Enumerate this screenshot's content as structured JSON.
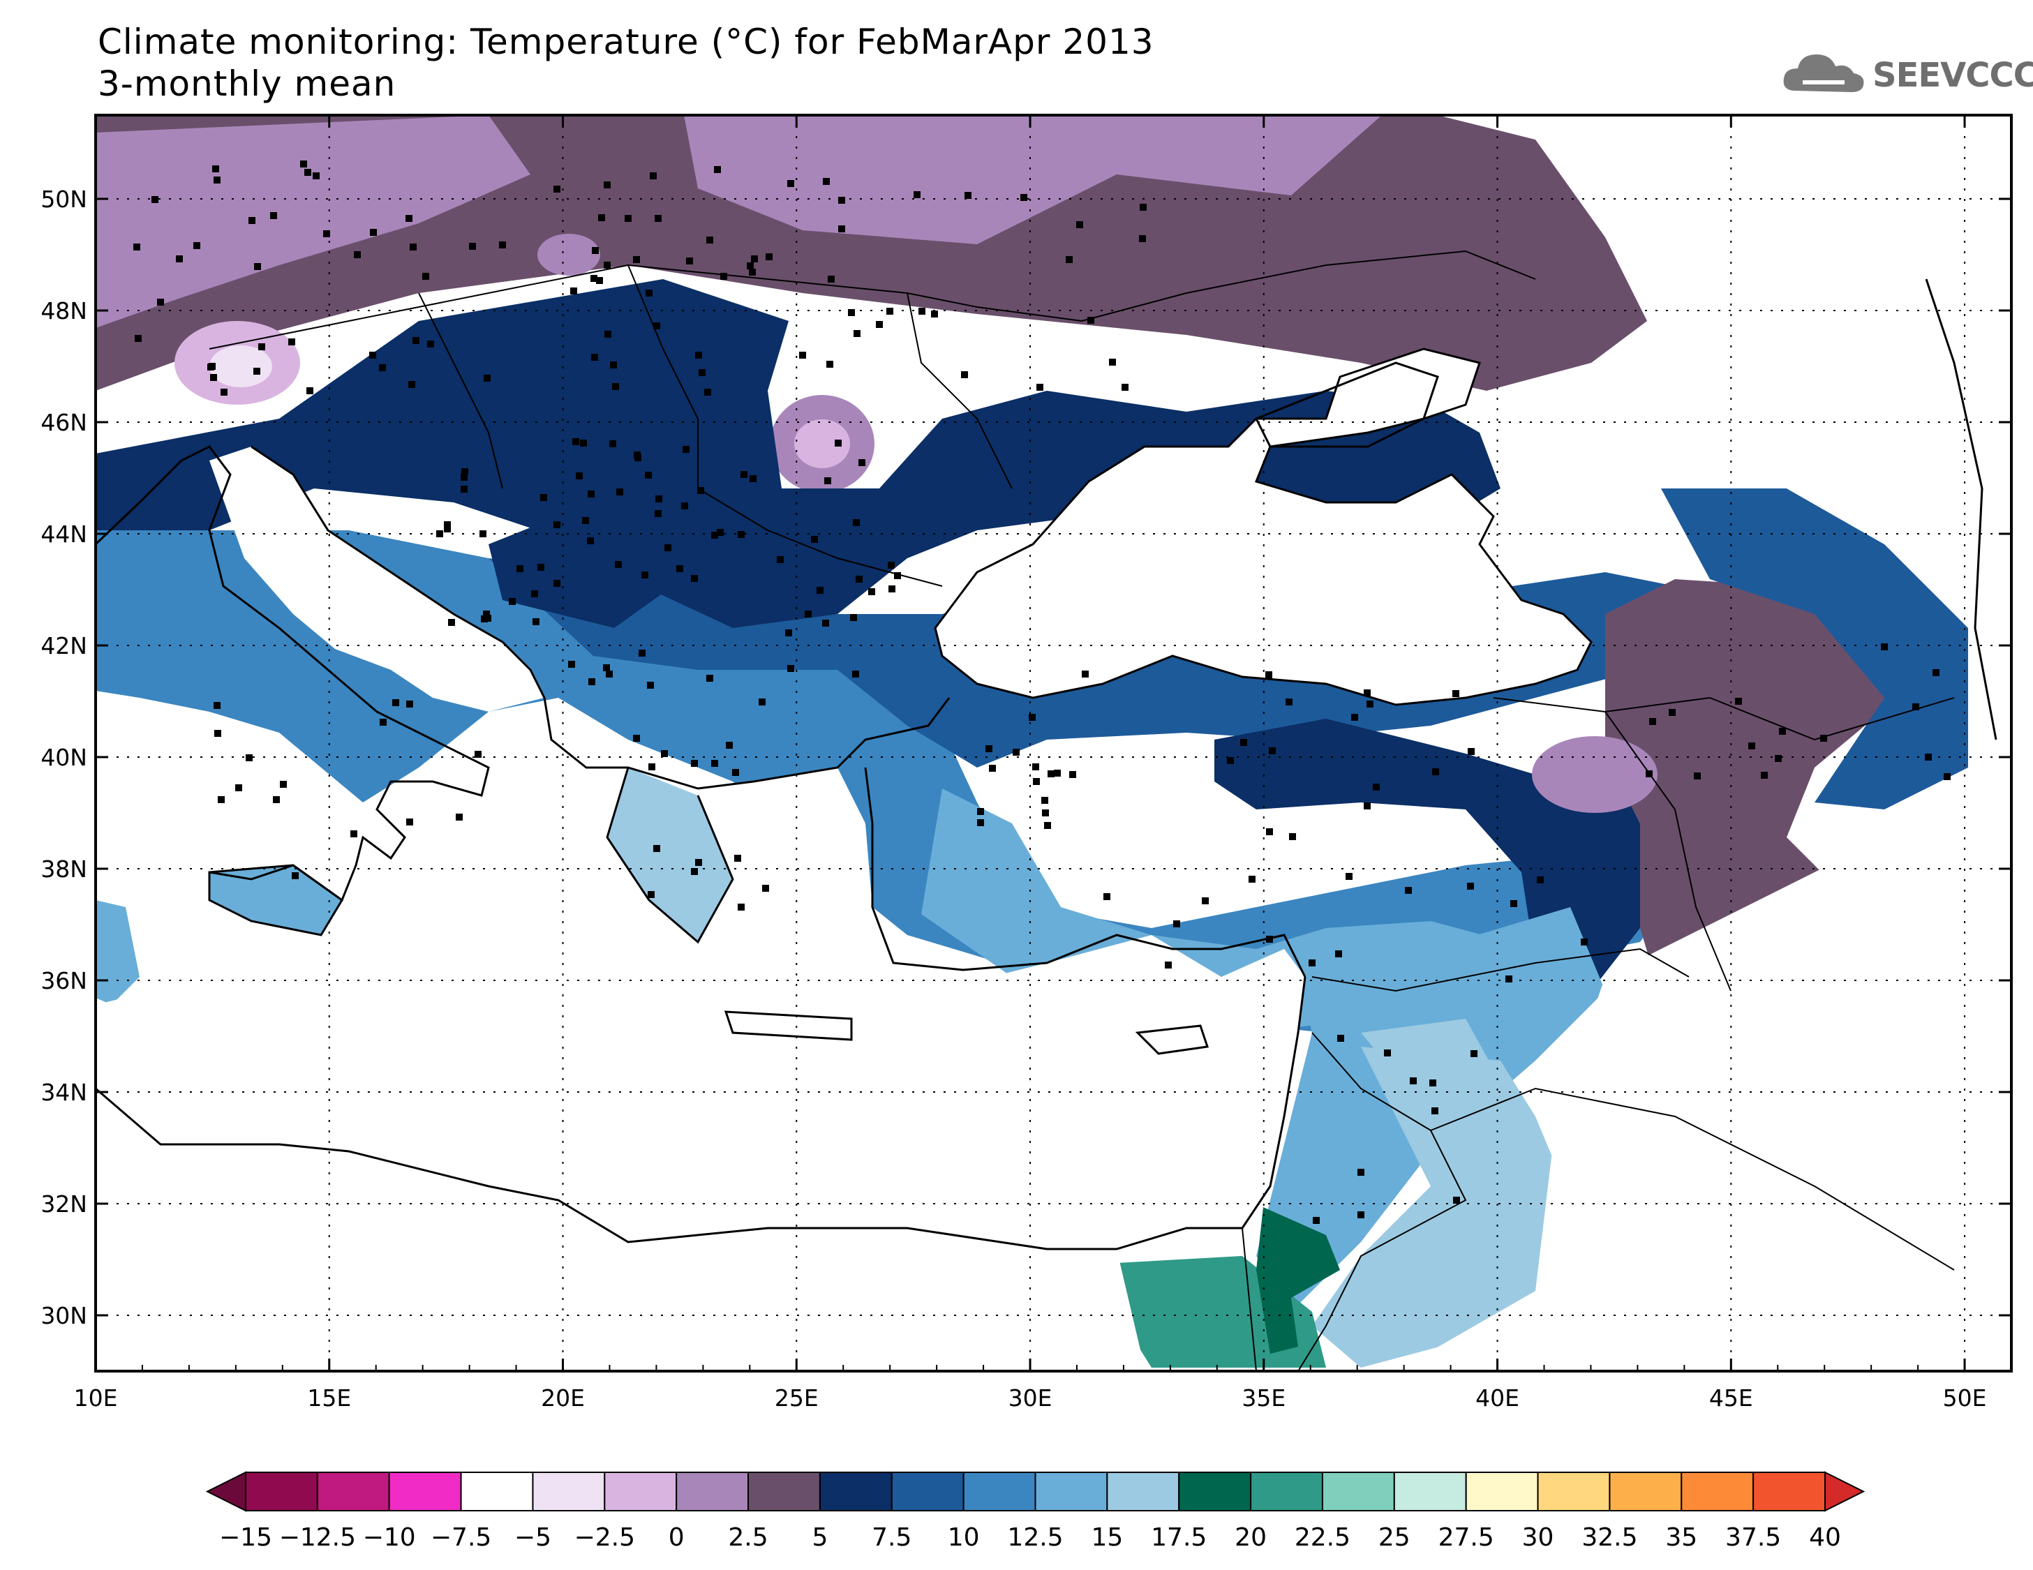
{
  "header": {
    "title_line1": "Climate monitoring: Temperature (°C) for FebMarApr 2013",
    "title_line2": "3-monthly mean",
    "logo_text": "SEEVCCC"
  },
  "map": {
    "lon_range": [
      10,
      51
    ],
    "lat_range": [
      29,
      51.5
    ],
    "x_ticks": [
      "10E",
      "15E",
      "20E",
      "25E",
      "30E",
      "35E",
      "40E",
      "45E",
      "50E"
    ],
    "y_ticks": [
      "30N",
      "32N",
      "34N",
      "36N",
      "38N",
      "40N",
      "42N",
      "44N",
      "46N",
      "48N",
      "50N"
    ],
    "grid": "dotted"
  },
  "colorbar": {
    "labels": [
      "-15",
      "-12.5",
      "-10",
      "-7.5",
      "-5",
      "-2.5",
      "0",
      "2.5",
      "5",
      "7.5",
      "10",
      "12.5",
      "15",
      "17.5",
      "20",
      "22.5",
      "25",
      "27.5",
      "30",
      "32.5",
      "35",
      "37.5",
      "40"
    ],
    "colors": [
      "#8f0a4e",
      "#c0197f",
      "#f02bc6",
      "#ffffff",
      "#efe2f4",
      "#d9b4e1",
      "#a986ba",
      "#6a4f6b",
      "#0b2f66",
      "#1d5a9a",
      "#3b86c0",
      "#69aed8",
      "#9ccae2",
      "#00664e",
      "#2f9a88",
      "#7fcfbc",
      "#c6ebe0",
      "#fff8c8",
      "#ffd77f",
      "#fdb04a",
      "#fc8a37",
      "#f2542d"
    ],
    "under_color": "#6b0a3a",
    "over_color": "#d42a2a"
  }
}
